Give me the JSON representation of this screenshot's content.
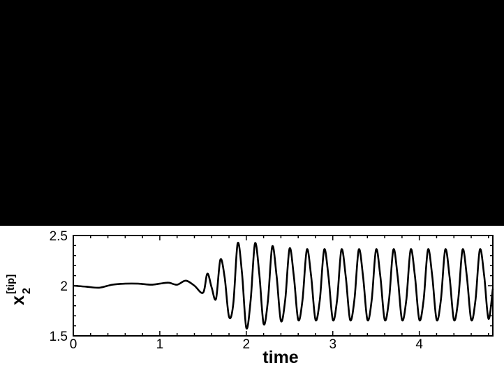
{
  "colors": {
    "background_top": "#000000",
    "panel": "#ffffff",
    "line": "#000000"
  },
  "chart_data": {
    "type": "line",
    "title": "",
    "xlabel": "time",
    "ylabel": {
      "base": "x",
      "subscript": "2",
      "superscript": "[tip]"
    },
    "xlim": [
      0,
      4.85
    ],
    "ylim": [
      1.5,
      2.5
    ],
    "xticks": [
      0,
      1,
      2,
      3,
      4
    ],
    "xtick_labels": [
      "0",
      "1",
      "2",
      "3",
      "4"
    ],
    "yticks": [
      1.5,
      2,
      2.5
    ],
    "ytick_labels": [
      "1.5",
      "2",
      "2.5"
    ],
    "grid": false,
    "legend": "none",
    "series": [
      {
        "values_description_x": "time",
        "x": [
          0.0,
          0.15,
          0.3,
          0.45,
          0.6,
          0.75,
          0.9,
          1.0,
          1.1,
          1.2,
          1.3,
          1.4,
          1.5,
          1.55,
          1.6,
          1.65,
          1.7,
          1.75,
          1.8,
          1.85,
          1.9,
          1.95,
          2.0,
          2.05,
          2.1,
          2.15,
          2.2,
          2.25,
          2.3,
          2.35,
          2.4,
          2.45,
          2.5,
          2.55,
          2.6,
          2.65,
          2.7,
          2.75,
          2.8,
          2.85,
          2.9,
          2.95,
          3.0,
          3.05,
          3.1,
          3.15,
          3.2,
          3.25,
          3.3,
          3.35,
          3.4,
          3.45,
          3.5,
          3.55,
          3.6,
          3.65,
          3.7,
          3.75,
          3.8,
          3.85,
          3.9,
          3.95,
          4.0,
          4.05,
          4.1,
          4.15,
          4.2,
          4.25,
          4.3,
          4.35,
          4.4,
          4.45,
          4.5,
          4.55,
          4.6,
          4.65,
          4.7,
          4.75,
          4.8,
          4.85
        ],
        "y": [
          2.0,
          1.99,
          1.98,
          2.01,
          2.02,
          2.02,
          2.01,
          2.02,
          2.03,
          2.01,
          2.05,
          2.0,
          1.93,
          2.12,
          1.98,
          1.87,
          2.26,
          2.08,
          1.69,
          1.82,
          2.42,
          2.13,
          1.58,
          1.85,
          2.42,
          2.12,
          1.62,
          1.85,
          2.39,
          2.1,
          1.65,
          1.86,
          2.37,
          2.09,
          1.66,
          1.86,
          2.36,
          2.09,
          1.66,
          1.86,
          2.36,
          2.09,
          1.66,
          1.86,
          2.36,
          2.09,
          1.66,
          1.86,
          2.36,
          2.09,
          1.66,
          1.86,
          2.36,
          2.09,
          1.66,
          1.86,
          2.36,
          2.09,
          1.66,
          1.86,
          2.36,
          2.09,
          1.66,
          1.86,
          2.36,
          2.09,
          1.66,
          1.86,
          2.36,
          2.09,
          1.66,
          1.86,
          2.36,
          2.09,
          1.66,
          1.86,
          2.36,
          2.1,
          1.67,
          1.97
        ]
      }
    ]
  }
}
